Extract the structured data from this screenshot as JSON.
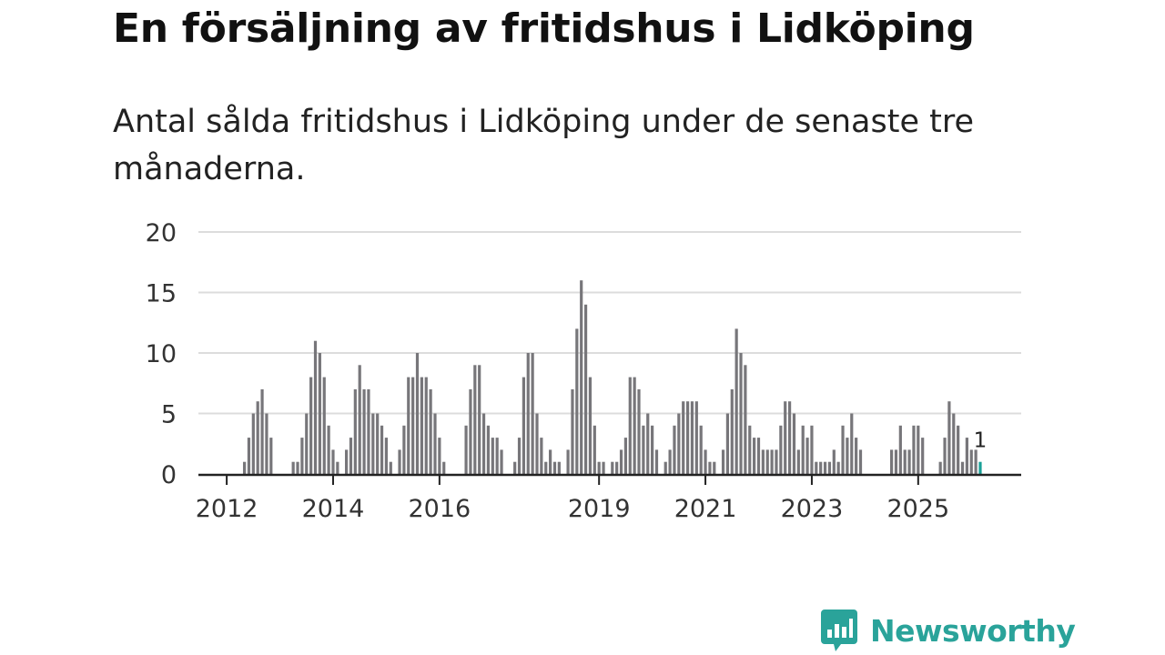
{
  "header": {
    "title": "En försäljning av fritidshus i Lidköping",
    "subtitle": "Antal sålda fritidshus i Lidköping under de senaste tre månaderna."
  },
  "brand": {
    "name": "Newsworthy",
    "icon": "newsworthy-chart-bubble-icon",
    "color": "#2aa39a"
  },
  "colors": {
    "bar": "#77767a",
    "highlight": "#1aa198",
    "grid": "#dcdcdc",
    "axis": "#222222"
  },
  "chart_data": {
    "type": "bar",
    "title": "En försäljning av fritidshus i Lidköping",
    "subtitle": "Antal sålda fritidshus i Lidköping under de senaste tre månaderna.",
    "xlabel": "",
    "ylabel": "",
    "ylim": [
      0,
      20
    ],
    "yticks": [
      0,
      5,
      10,
      15,
      20
    ],
    "x_start": "2011-06",
    "x_unit": "month",
    "xticks": [
      {
        "label": "2012",
        "index": 7
      },
      {
        "label": "2014",
        "index": 31
      },
      {
        "label": "2016",
        "index": 55
      },
      {
        "label": "2019",
        "index": 91
      },
      {
        "label": "2021",
        "index": 115
      },
      {
        "label": "2023",
        "index": 139
      },
      {
        "label": "2025",
        "index": 163
      }
    ],
    "values": [
      0,
      0,
      0,
      0,
      0,
      0,
      0,
      0,
      0,
      0,
      0,
      1,
      3,
      5,
      6,
      7,
      5,
      3,
      0,
      0,
      0,
      0,
      1,
      1,
      3,
      5,
      8,
      11,
      10,
      8,
      4,
      2,
      1,
      0,
      2,
      3,
      7,
      9,
      7,
      7,
      5,
      5,
      4,
      3,
      1,
      0,
      2,
      4,
      8,
      8,
      10,
      8,
      8,
      7,
      5,
      3,
      1,
      0,
      0,
      0,
      0,
      4,
      7,
      9,
      9,
      5,
      4,
      3,
      3,
      2,
      0,
      0,
      1,
      3,
      8,
      10,
      10,
      5,
      3,
      1,
      2,
      1,
      1,
      0,
      2,
      7,
      12,
      16,
      14,
      8,
      4,
      1,
      1,
      0,
      1,
      1,
      2,
      3,
      8,
      8,
      7,
      4,
      5,
      4,
      2,
      0,
      1,
      2,
      4,
      5,
      6,
      6,
      6,
      6,
      4,
      2,
      1,
      1,
      0,
      2,
      5,
      7,
      12,
      10,
      9,
      4,
      3,
      3,
      2,
      2,
      2,
      2,
      4,
      6,
      6,
      5,
      2,
      4,
      3,
      4,
      1,
      1,
      1,
      1,
      2,
      1,
      4,
      3,
      5,
      3,
      2,
      0,
      0,
      0,
      0,
      0,
      0,
      2,
      2,
      4,
      2,
      2,
      4,
      4,
      3,
      0,
      0,
      0,
      1,
      3,
      6,
      5,
      4,
      1,
      3,
      2,
      2,
      1
    ],
    "highlight_last": true,
    "annotation": {
      "text": "1",
      "target": "last"
    }
  }
}
